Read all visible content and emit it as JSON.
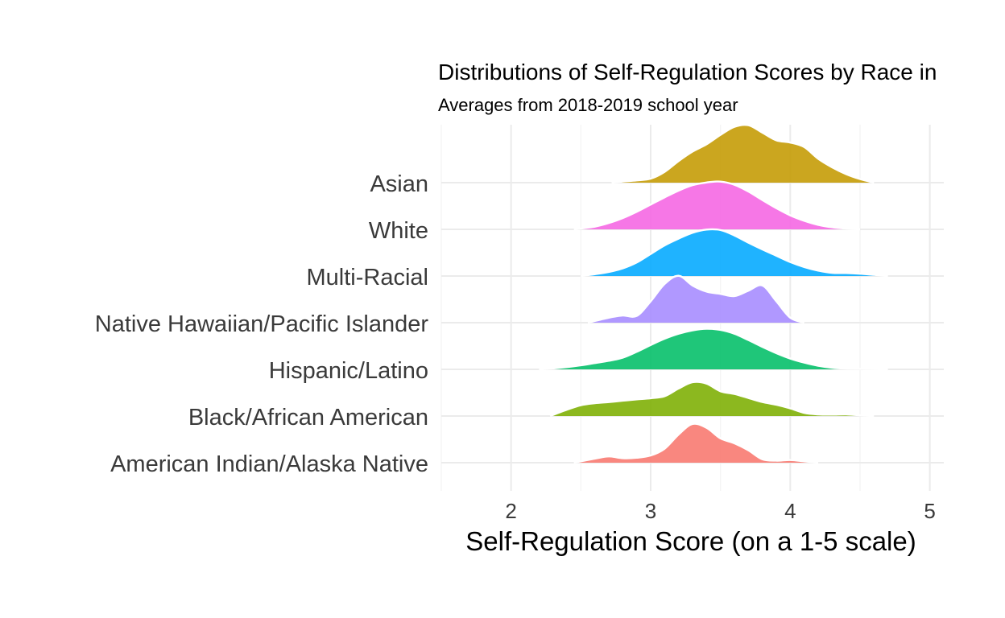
{
  "chart_data": {
    "type": "ridgeline",
    "title": "Distributions of Self-Regulation Scores by Race in",
    "subtitle": "Averages from 2018-2019 school year",
    "xlabel": "Self-Regulation Score (on a 1-5 scale)",
    "ylabel": "",
    "xlim": [
      1.5,
      5.1
    ],
    "x_ticks": [
      "2",
      "3",
      "4",
      "5"
    ],
    "grid": true,
    "legend": "none",
    "categories": [
      "American Indian/Alaska Native",
      "Black/African American",
      "Hispanic/Latino",
      "Native Hawaiian/Pacific Islander",
      "Multi-Racial",
      "White",
      "Asian"
    ],
    "series": [
      {
        "category": "American Indian/Alaska Native",
        "color": "#F8766D",
        "x": [
          2.45,
          2.6,
          2.7,
          2.8,
          2.9,
          3.0,
          3.1,
          3.2,
          3.3,
          3.4,
          3.5,
          3.6,
          3.7,
          3.8,
          3.9,
          4.0,
          4.1,
          4.2
        ],
        "density": [
          0.0,
          0.18,
          0.28,
          0.2,
          0.22,
          0.32,
          0.62,
          1.25,
          1.72,
          1.55,
          1.08,
          0.86,
          0.55,
          0.15,
          0.09,
          0.12,
          0.06,
          0.0
        ]
      },
      {
        "category": "Black/African American",
        "color": "#7CAE00",
        "x": [
          2.28,
          2.4,
          2.5,
          2.6,
          2.7,
          2.8,
          2.9,
          3.0,
          3.1,
          3.2,
          3.3,
          3.4,
          3.5,
          3.6,
          3.7,
          3.8,
          3.9,
          4.0,
          4.1,
          4.2,
          4.3,
          4.4,
          4.5,
          4.6
        ],
        "density": [
          0.0,
          0.28,
          0.48,
          0.57,
          0.62,
          0.68,
          0.74,
          0.79,
          0.88,
          1.22,
          1.5,
          1.44,
          1.1,
          0.98,
          0.8,
          0.62,
          0.5,
          0.34,
          0.14,
          0.07,
          0.06,
          0.07,
          0.03,
          0.0
        ]
      },
      {
        "category": "Hispanic/Latino",
        "color": "#00BE67",
        "x": [
          2.2,
          2.3,
          2.4,
          2.5,
          2.6,
          2.7,
          2.8,
          2.9,
          3.0,
          3.1,
          3.2,
          3.3,
          3.4,
          3.5,
          3.6,
          3.7,
          3.8,
          3.9,
          4.0,
          4.1,
          4.2,
          4.3,
          4.4,
          4.5,
          4.6,
          4.7
        ],
        "density": [
          0.0,
          0.04,
          0.1,
          0.18,
          0.28,
          0.38,
          0.52,
          0.78,
          1.08,
          1.36,
          1.58,
          1.73,
          1.8,
          1.75,
          1.58,
          1.3,
          1.0,
          0.72,
          0.48,
          0.3,
          0.16,
          0.07,
          0.03,
          0.02,
          0.01,
          0.0
        ]
      },
      {
        "category": "Native Hawaiian/Pacific Islander",
        "color": "#A58AFF",
        "x": [
          2.55,
          2.7,
          2.8,
          2.9,
          3.0,
          3.1,
          3.2,
          3.3,
          3.4,
          3.5,
          3.6,
          3.7,
          3.8,
          3.9,
          4.0,
          4.1
        ],
        "density": [
          0.0,
          0.22,
          0.32,
          0.3,
          0.95,
          1.72,
          2.08,
          1.65,
          1.38,
          1.28,
          1.18,
          1.42,
          1.65,
          0.95,
          0.22,
          0.0
        ]
      },
      {
        "category": "Multi-Racial",
        "color": "#00A9FF",
        "x": [
          2.5,
          2.6,
          2.7,
          2.8,
          2.9,
          3.0,
          3.1,
          3.2,
          3.3,
          3.4,
          3.5,
          3.6,
          3.7,
          3.8,
          3.9,
          4.0,
          4.1,
          4.2,
          4.3,
          4.4,
          4.5,
          4.6,
          4.7
        ],
        "density": [
          0.0,
          0.08,
          0.18,
          0.34,
          0.6,
          0.98,
          1.36,
          1.66,
          1.92,
          2.06,
          2.04,
          1.8,
          1.48,
          1.18,
          0.9,
          0.62,
          0.4,
          0.24,
          0.14,
          0.13,
          0.1,
          0.05,
          0.0
        ]
      },
      {
        "category": "White",
        "color": "#F564E3",
        "x": [
          2.45,
          2.6,
          2.7,
          2.8,
          2.9,
          3.0,
          3.1,
          3.2,
          3.3,
          3.4,
          3.5,
          3.6,
          3.7,
          3.8,
          3.9,
          4.0,
          4.1,
          4.2,
          4.3,
          4.4,
          4.5
        ],
        "density": [
          0.0,
          0.12,
          0.28,
          0.5,
          0.78,
          1.1,
          1.42,
          1.72,
          1.96,
          2.08,
          2.12,
          1.98,
          1.68,
          1.3,
          0.94,
          0.62,
          0.38,
          0.2,
          0.09,
          0.03,
          0.0
        ]
      },
      {
        "category": "Asian",
        "color": "#C49A00",
        "x": [
          2.72,
          2.8,
          2.9,
          3.0,
          3.1,
          3.2,
          3.3,
          3.4,
          3.5,
          3.6,
          3.7,
          3.8,
          3.9,
          4.0,
          4.1,
          4.2,
          4.3,
          4.4,
          4.5,
          4.6
        ],
        "density": [
          0.0,
          0.05,
          0.1,
          0.18,
          0.48,
          0.96,
          1.38,
          1.7,
          2.12,
          2.48,
          2.55,
          2.22,
          1.88,
          1.78,
          1.58,
          1.06,
          0.68,
          0.38,
          0.16,
          0.0
        ]
      }
    ]
  }
}
